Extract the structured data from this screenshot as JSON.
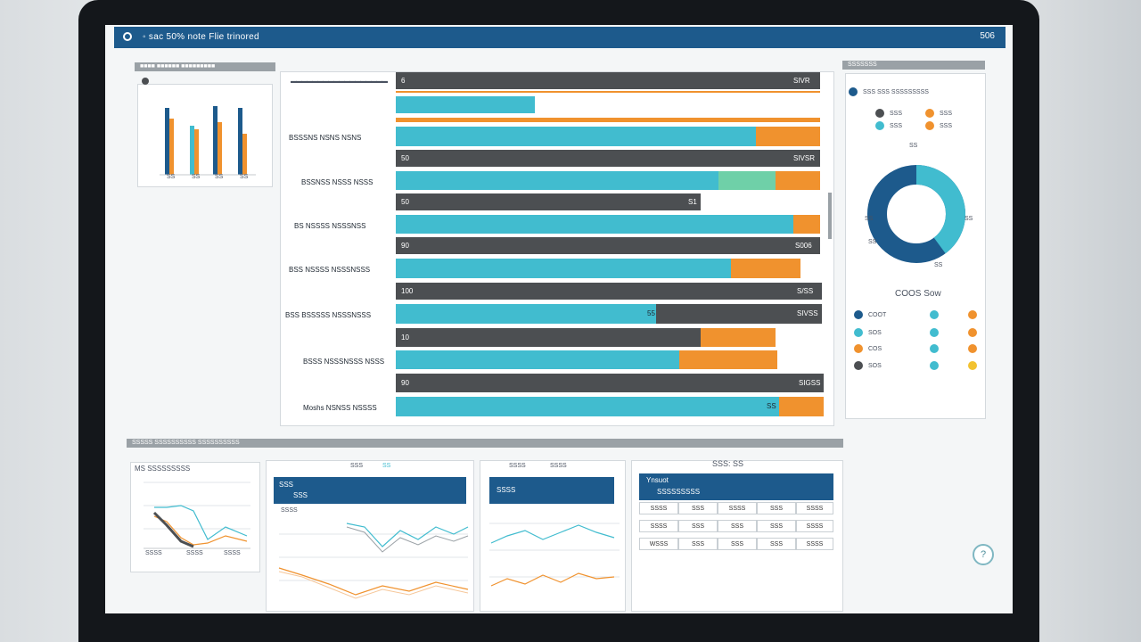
{
  "window": {
    "title": "◦ sac 50% note Flie trinored",
    "top_right": "506"
  },
  "left_panel": {
    "header": "■■■■ ■■■■■■ ■■■■■■■■■",
    "axis_labels": [
      "SS",
      "SS",
      "SS",
      "SS"
    ]
  },
  "bars": {
    "header": "▬▬▬▬▬▬▬▬▬▬▬▬▬▬▬▬▬▬",
    "rows": [
      {
        "label": "",
        "dark_left": "6",
        "dark_right": "SIVR"
      },
      {
        "label": "BSSSNS NSNS NSNS",
        "dark_left": "50",
        "dark_right": "SIVSR"
      },
      {
        "label": "BSSNSS NSSS NSSS",
        "dark_left": "50",
        "dark_right": "S1"
      },
      {
        "label": "BS NSSSS NSSSNSS",
        "dark_left": "90",
        "dark_right": "S006"
      },
      {
        "label": "BSS NSSSS NSSSNSSS",
        "dark_left": "100",
        "dark_right": "S/SS"
      },
      {
        "label": "BSS BSSSSS NSSSNSSS",
        "dark_left": "",
        "dark_right": "SIVSS",
        "teal_label": "55"
      },
      {
        "label": "BSSS NSSSNSSS NSSS",
        "dark_left": "10",
        "dark_right": ""
      },
      {
        "label": "Moshs NSNSS NSSSS",
        "dark_left": "90",
        "dark_right": "SIGSS",
        "teal_label": "SS"
      }
    ]
  },
  "right_panel": {
    "header": "SSSSSSS",
    "subtitle": "SSS SSS SSSSSSSSS",
    "legend_top": [
      "SSS",
      "SSS",
      "SSS",
      "SSS"
    ],
    "donut_labels": {
      "top": "SS",
      "left": "SS",
      "right": "SS",
      "bottom": "SS",
      "lower_left": "SS"
    },
    "donut_title": "COOS Sow",
    "legend_rows": [
      "COOT",
      "SOS",
      "COS",
      "SOS"
    ]
  },
  "bottom": {
    "header": "SSSSS SSSSSSSSSS SSSSSSSSSS",
    "mini1": {
      "title": "MS SSSSSSSSS",
      "ticks": [
        "SSSS",
        "SSSS",
        "SSSS"
      ]
    },
    "mini2": {
      "top_labels": [
        "SSS",
        "SS"
      ],
      "hdr1": "SSS",
      "hdr2": "SSS",
      "sub": "SSSS"
    },
    "mini3": {
      "top_labels": [
        "SSSS",
        "SSSS"
      ],
      "hdr": "SSSS"
    },
    "table": {
      "top_label": "SSS: SS",
      "hdr1": "Ynsuot",
      "hdr2": "SSSSSSSSS",
      "rows": [
        [
          "SSSS",
          "SSS",
          "SSSS",
          "SSS",
          "SSSS"
        ],
        [
          "SSSS",
          "SSS",
          "SSS",
          "SSS",
          "SSSS"
        ],
        [
          "WSSS",
          "SSS",
          "SSS",
          "SSS",
          "SSSS"
        ]
      ]
    }
  },
  "help_glyph": "?"
}
